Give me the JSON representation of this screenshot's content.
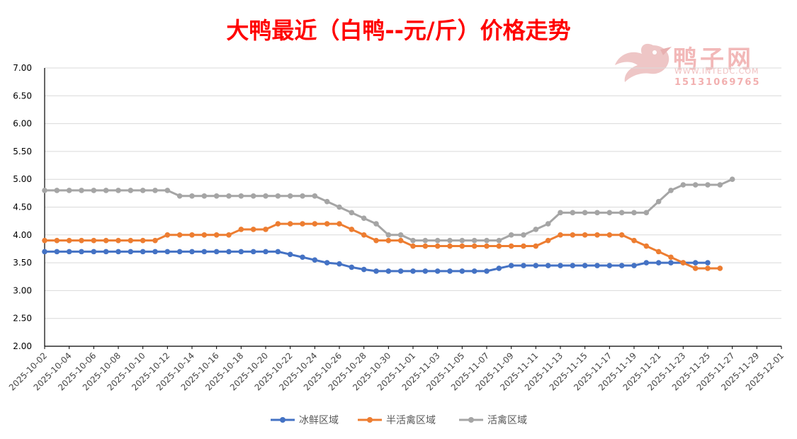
{
  "chart_data": {
    "type": "line",
    "title": "大鸭最近（白鸭--元/斤）价格走势",
    "ylim": [
      2.0,
      7.0
    ],
    "y_ticks": [
      "2.00",
      "2.50",
      "3.00",
      "3.50",
      "4.00",
      "4.50",
      "5.00",
      "5.50",
      "6.00",
      "6.50",
      "7.00"
    ],
    "x_start": "2025-10-02",
    "x_end": "2025-12-01",
    "x_tick_labels": [
      "2025-10-02",
      "2025-10-04",
      "2025-10-06",
      "2025-10-08",
      "2025-10-10",
      "2025-10-12",
      "2025-10-14",
      "2025-10-16",
      "2025-10-18",
      "2025-10-20",
      "2025-10-22",
      "2025-10-24",
      "2025-10-26",
      "2025-10-28",
      "2025-10-30",
      "2025-11-01",
      "2025-11-03",
      "2025-11-05",
      "2025-11-07",
      "2025-11-09",
      "2025-11-11",
      "2025-11-13",
      "2025-11-15",
      "2025-11-17",
      "2025-11-19",
      "2025-11-21",
      "2025-11-23",
      "2025-11-25",
      "2025-11-27",
      "2025-11-29",
      "2025-12-01"
    ],
    "grid": true,
    "legend_position": "bottom",
    "series": [
      {
        "name": "冰鲜区域",
        "color": "#4472c4",
        "start_date": "2025-10-02",
        "values": [
          3.7,
          3.7,
          3.7,
          3.7,
          3.7,
          3.7,
          3.7,
          3.7,
          3.7,
          3.7,
          3.7,
          3.7,
          3.7,
          3.7,
          3.7,
          3.7,
          3.7,
          3.7,
          3.7,
          3.7,
          3.65,
          3.6,
          3.55,
          3.5,
          3.48,
          3.42,
          3.38,
          3.35,
          3.35,
          3.35,
          3.35,
          3.35,
          3.35,
          3.35,
          3.35,
          3.35,
          3.35,
          3.4,
          3.45,
          3.45,
          3.45,
          3.45,
          3.45,
          3.45,
          3.45,
          3.45,
          3.45,
          3.45,
          3.45,
          3.5,
          3.5,
          3.5,
          3.5,
          3.5,
          3.5
        ]
      },
      {
        "name": "半活禽区域",
        "color": "#ed7d31",
        "start_date": "2025-10-02",
        "values": [
          3.9,
          3.9,
          3.9,
          3.9,
          3.9,
          3.9,
          3.9,
          3.9,
          3.9,
          3.9,
          4.0,
          4.0,
          4.0,
          4.0,
          4.0,
          4.0,
          4.1,
          4.1,
          4.1,
          4.2,
          4.2,
          4.2,
          4.2,
          4.2,
          4.2,
          4.1,
          4.0,
          3.9,
          3.9,
          3.9,
          3.8,
          3.8,
          3.8,
          3.8,
          3.8,
          3.8,
          3.8,
          3.8,
          3.8,
          3.8,
          3.8,
          3.9,
          4.0,
          4.0,
          4.0,
          4.0,
          4.0,
          4.0,
          3.9,
          3.8,
          3.7,
          3.6,
          3.5,
          3.4,
          3.4,
          3.4
        ]
      },
      {
        "name": "活禽区域",
        "color": "#a5a5a5",
        "start_date": "2025-10-02",
        "values": [
          4.8,
          4.8,
          4.8,
          4.8,
          4.8,
          4.8,
          4.8,
          4.8,
          4.8,
          4.8,
          4.8,
          4.7,
          4.7,
          4.7,
          4.7,
          4.7,
          4.7,
          4.7,
          4.7,
          4.7,
          4.7,
          4.7,
          4.7,
          4.6,
          4.5,
          4.4,
          4.3,
          4.2,
          4.0,
          4.0,
          3.9,
          3.9,
          3.9,
          3.9,
          3.9,
          3.9,
          3.9,
          3.9,
          4.0,
          4.0,
          4.1,
          4.2,
          4.4,
          4.4,
          4.4,
          4.4,
          4.4,
          4.4,
          4.4,
          4.4,
          4.6,
          4.8,
          4.9,
          4.9,
          4.9,
          4.9,
          5.0
        ]
      }
    ]
  },
  "watermark": {
    "name": "鸭子网",
    "url": "WWW.INTEDC.COM",
    "phone": "15131069765"
  }
}
